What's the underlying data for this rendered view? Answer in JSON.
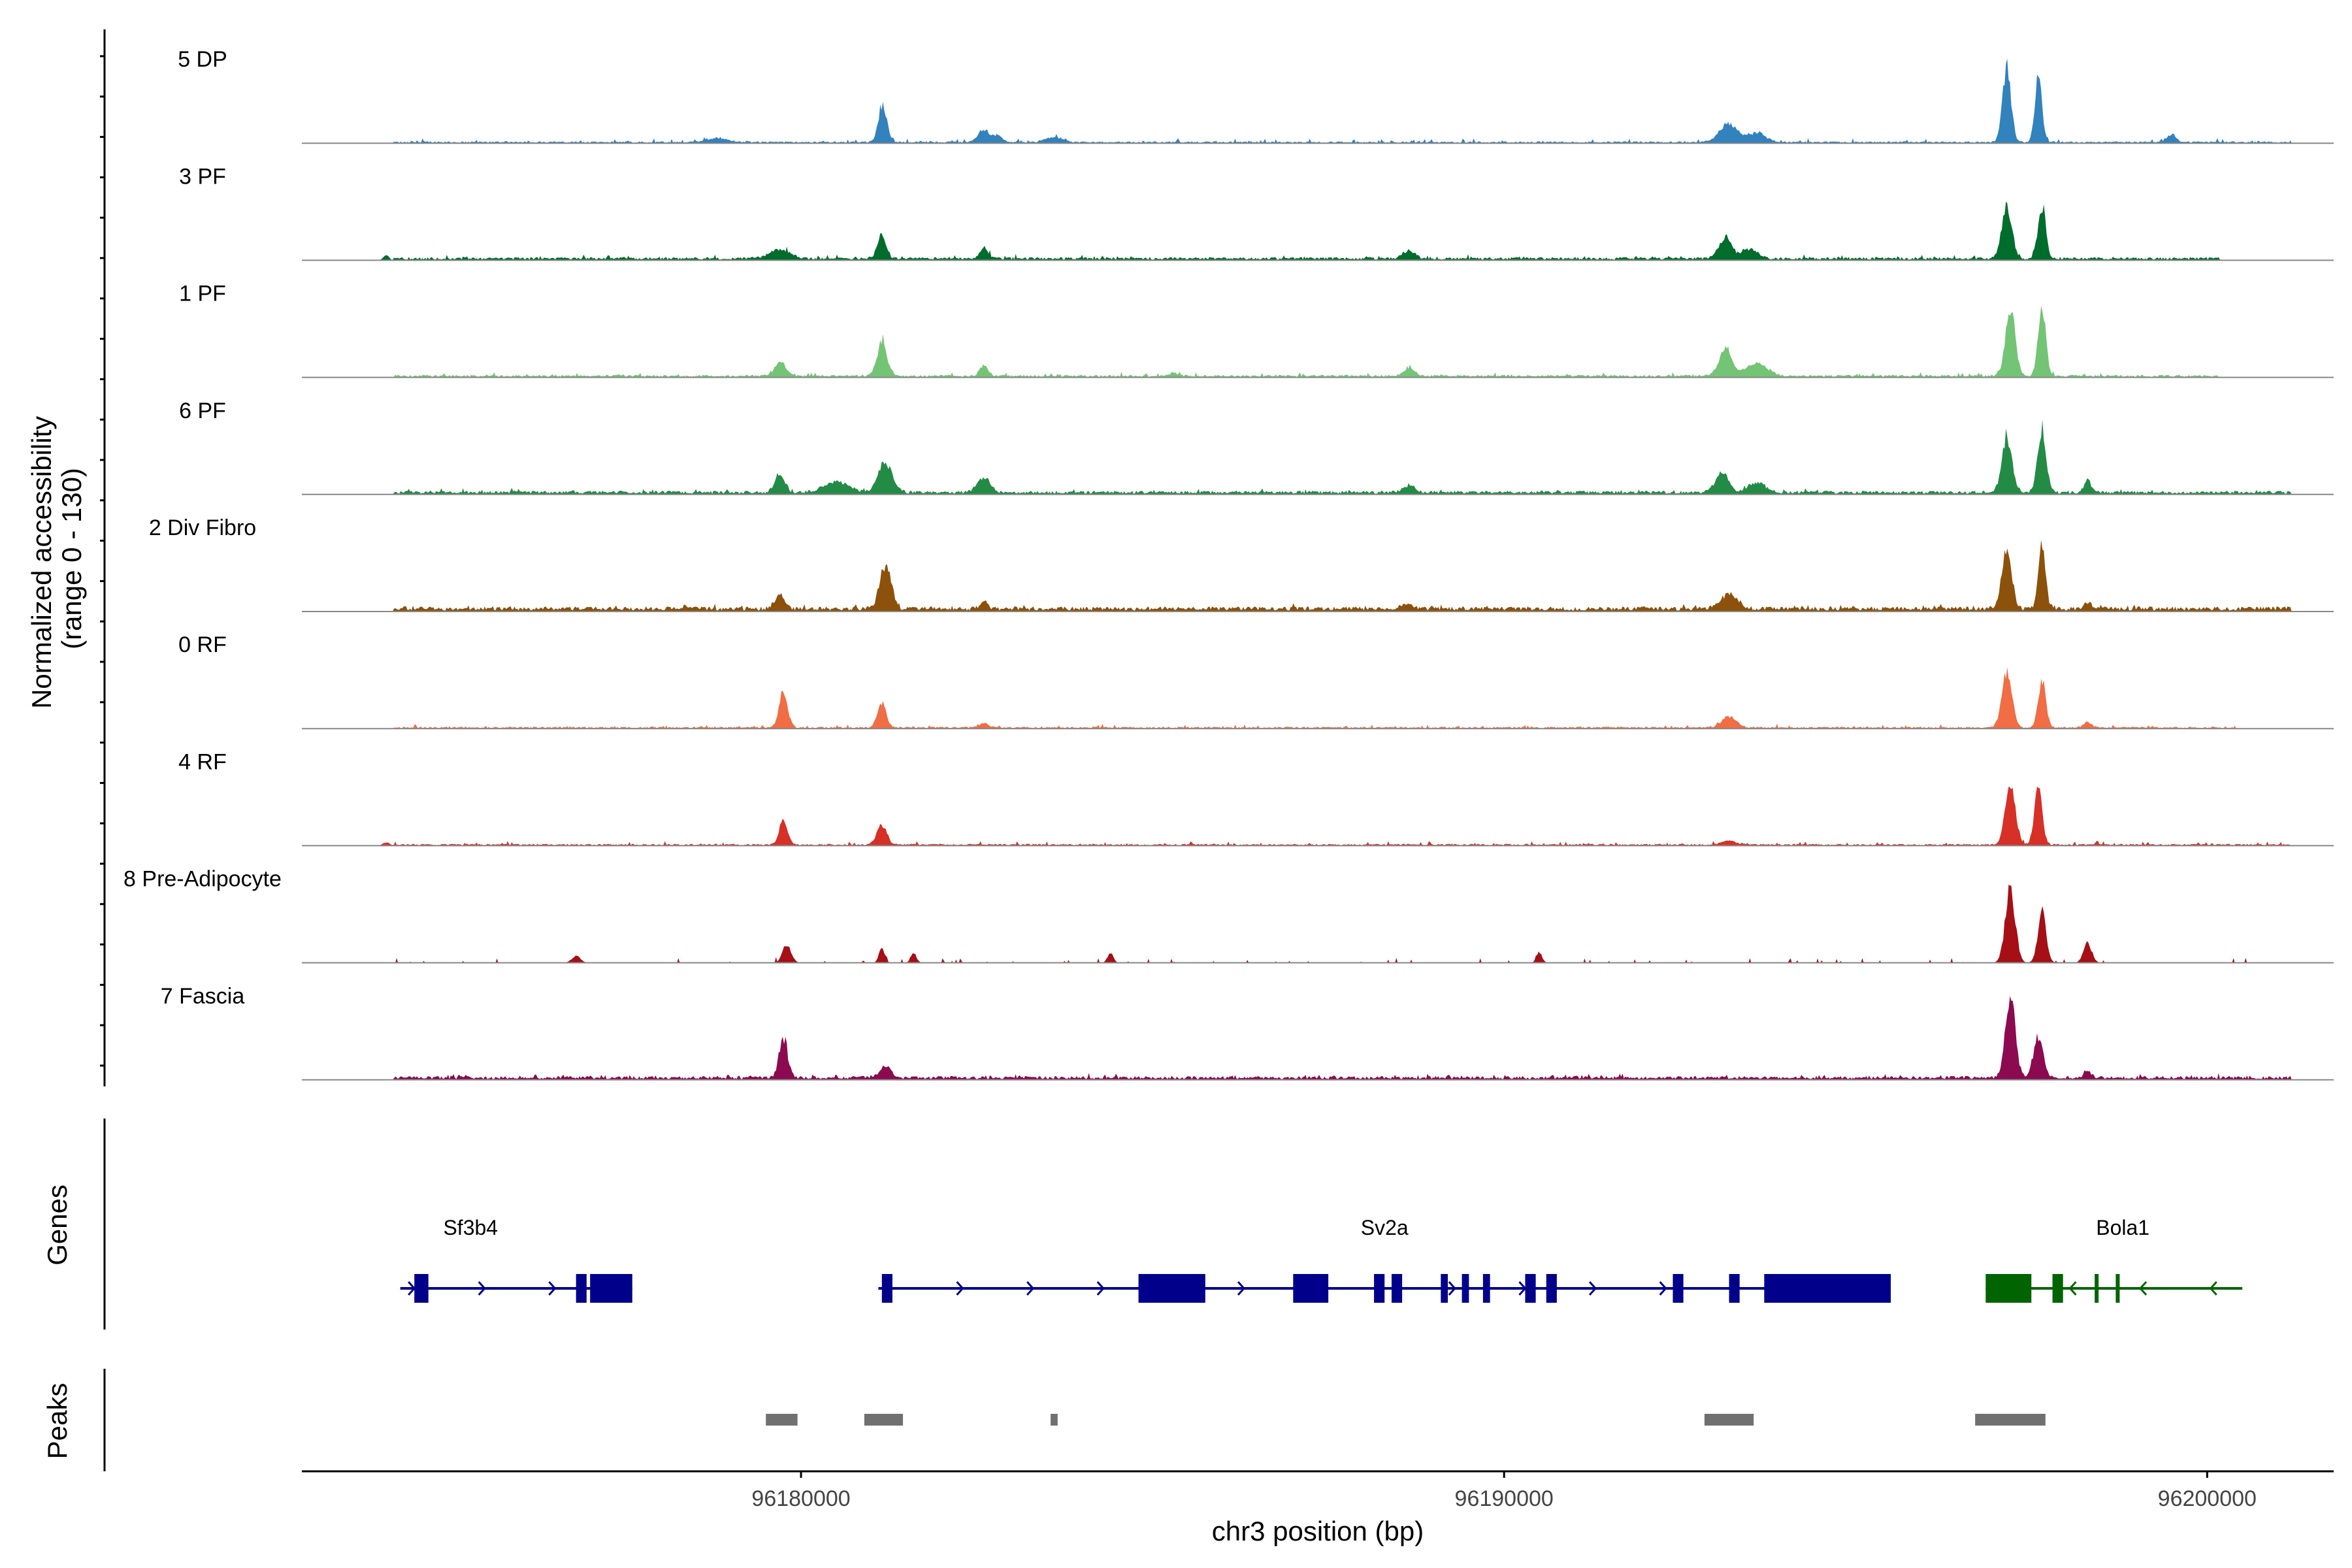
{
  "chart_data": {
    "type": "area",
    "subtype": "coverage-track",
    "y_axis": {
      "title_line1": "Normalized accessibility",
      "title_line2": "(range 0 - 130)",
      "range": [
        0,
        130
      ]
    },
    "x_axis": {
      "title": "chr3 position (bp)",
      "range": [
        96172900,
        96201800
      ],
      "ticks": [
        96180000,
        96190000,
        96200000
      ],
      "tick_labels": [
        "96180000",
        "96190000",
        "96200000"
      ]
    },
    "tracks": [
      {
        "name": "5 DP",
        "color": "#3182bd",
        "baseline": 1.5,
        "noise_end": 96201200,
        "peaks": [
          [
            96181160,
            45,
            60
          ],
          [
            96182600,
            15,
            80
          ],
          [
            96182800,
            8,
            60
          ],
          [
            96183600,
            6,
            120
          ],
          [
            96193200,
            22,
            130
          ],
          [
            96193600,
            11,
            120
          ],
          [
            96197150,
            90,
            60
          ],
          [
            96197600,
            80,
            50
          ],
          [
            96199500,
            10,
            60
          ],
          [
            96178800,
            5,
            150
          ]
        ]
      },
      {
        "name": "3 PF",
        "color": "#006d2c",
        "baseline": 2.5,
        "noise_end": 96200200,
        "peaks": [
          [
            96181150,
            30,
            60
          ],
          [
            96179700,
            10,
            150
          ],
          [
            96182600,
            13,
            60
          ],
          [
            96188650,
            10,
            80
          ],
          [
            96193150,
            26,
            90
          ],
          [
            96193500,
            12,
            100
          ],
          [
            96197150,
            65,
            70
          ],
          [
            96197650,
            62,
            55
          ],
          [
            96174100,
            6,
            40
          ]
        ]
      },
      {
        "name": "1 PF",
        "color": "#74c476",
        "baseline": 2,
        "noise_end": 96200200,
        "peaks": [
          [
            96181150,
            40,
            70
          ],
          [
            96179700,
            16,
            80
          ],
          [
            96182600,
            12,
            60
          ],
          [
            96188650,
            10,
            80
          ],
          [
            96193150,
            33,
            90
          ],
          [
            96193600,
            15,
            150
          ],
          [
            96197200,
            78,
            70
          ],
          [
            96197650,
            82,
            55
          ],
          [
            96185300,
            4,
            60
          ]
        ]
      },
      {
        "name": "6 PF",
        "color": "#238b45",
        "baseline": 3,
        "noise_end": 96201200,
        "peaks": [
          [
            96181200,
            35,
            100
          ],
          [
            96179700,
            22,
            70
          ],
          [
            96180500,
            12,
            180
          ],
          [
            96182600,
            17,
            90
          ],
          [
            96188650,
            9,
            80
          ],
          [
            96193100,
            24,
            90
          ],
          [
            96193600,
            12,
            120
          ],
          [
            96197150,
            68,
            70
          ],
          [
            96197650,
            78,
            60
          ],
          [
            96198300,
            14,
            50
          ]
        ]
      },
      {
        "name": "2 Div Fibro",
        "color": "#8c510a",
        "baseline": 4,
        "noise_end": 96201200,
        "peaks": [
          [
            96181200,
            52,
            80
          ],
          [
            96179700,
            17,
            60
          ],
          [
            96182600,
            8,
            60
          ],
          [
            96188600,
            6,
            80
          ],
          [
            96193200,
            18,
            120
          ],
          [
            96197150,
            68,
            70
          ],
          [
            96197650,
            75,
            50
          ],
          [
            96198300,
            7,
            60
          ]
        ]
      },
      {
        "name": "0 RF",
        "color": "#f16d43",
        "baseline": 1.5,
        "noise_end": 96200400,
        "peaks": [
          [
            96179750,
            42,
            60
          ],
          [
            96181150,
            30,
            60
          ],
          [
            96182600,
            6,
            60
          ],
          [
            96193200,
            13,
            100
          ],
          [
            96197150,
            68,
            70
          ],
          [
            96197650,
            55,
            55
          ],
          [
            96198300,
            6,
            60
          ]
        ]
      },
      {
        "name": "4 RF",
        "color": "#d73027",
        "baseline": 1.5,
        "noise_end": 96201200,
        "peaks": [
          [
            96179750,
            28,
            60
          ],
          [
            96181150,
            22,
            70
          ],
          [
            96193200,
            5,
            100
          ],
          [
            96197200,
            72,
            70
          ],
          [
            96197600,
            65,
            55
          ],
          [
            96174100,
            4,
            50
          ]
        ]
      },
      {
        "name": "8 Pre-Adipocyte",
        "color": "#a50f15",
        "baseline": 0,
        "noise_end": 96201200,
        "sparse": true,
        "peaks": [
          [
            96179800,
            22,
            60
          ],
          [
            96181150,
            17,
            40
          ],
          [
            96181600,
            12,
            40
          ],
          [
            96184400,
            12,
            40
          ],
          [
            96190500,
            12,
            40
          ],
          [
            96197200,
            88,
            70
          ],
          [
            96197650,
            58,
            60
          ],
          [
            96198300,
            22,
            60
          ],
          [
            96176800,
            8,
            60
          ]
        ]
      },
      {
        "name": "7 Fascia",
        "color": "#8b0a50",
        "baseline": 3,
        "noise_end": 96201200,
        "peaks": [
          [
            96179750,
            45,
            60
          ],
          [
            96181200,
            14,
            80
          ],
          [
            96197200,
            98,
            70
          ],
          [
            96197600,
            50,
            70
          ],
          [
            96198300,
            7,
            60
          ]
        ]
      }
    ],
    "genes": [
      {
        "name": "Sf3b4",
        "label_pos": 96175300,
        "start": 96174300,
        "end": 96177600,
        "strand": "+",
        "color": "#00008b",
        "exons": [
          [
            96174500,
            96174700
          ],
          [
            96176800,
            96176950
          ],
          [
            96177000,
            96177600
          ]
        ]
      },
      {
        "name": "Sv2a",
        "label_pos": 96188300,
        "start": 96181100,
        "end": 96195400,
        "strand": "+",
        "color": "#00008b",
        "exons": [
          [
            96181150,
            96181300
          ],
          [
            96184800,
            96185750
          ],
          [
            96187000,
            96187500
          ],
          [
            96188150,
            96188300
          ],
          [
            96188400,
            96188550
          ],
          [
            96189100,
            96189200
          ],
          [
            96189400,
            96189500
          ],
          [
            96189700,
            96189800
          ],
          [
            96190300,
            96190450
          ],
          [
            96190600,
            96190750
          ],
          [
            96192400,
            96192550
          ],
          [
            96193200,
            96193350
          ],
          [
            96193700,
            96195500
          ]
        ]
      },
      {
        "name": "Bola1",
        "label_pos": 96198800,
        "start": 96196850,
        "end": 96200500,
        "strand": "-",
        "color": "#006400",
        "exons": [
          [
            96196850,
            96197500
          ],
          [
            96197800,
            96197950
          ],
          [
            96198400,
            96198450
          ],
          [
            96198700,
            96198750
          ]
        ]
      }
    ],
    "peaks_track": {
      "label": "Peaks",
      "color": "#707070",
      "regions": [
        [
          96179500,
          96179950
        ],
        [
          96180900,
          96181450
        ],
        [
          96183550,
          96183650
        ],
        [
          96192850,
          96193550
        ],
        [
          96196700,
          96197700
        ]
      ]
    },
    "panel_labels": {
      "genes": "Genes",
      "peaks": "Peaks"
    }
  }
}
